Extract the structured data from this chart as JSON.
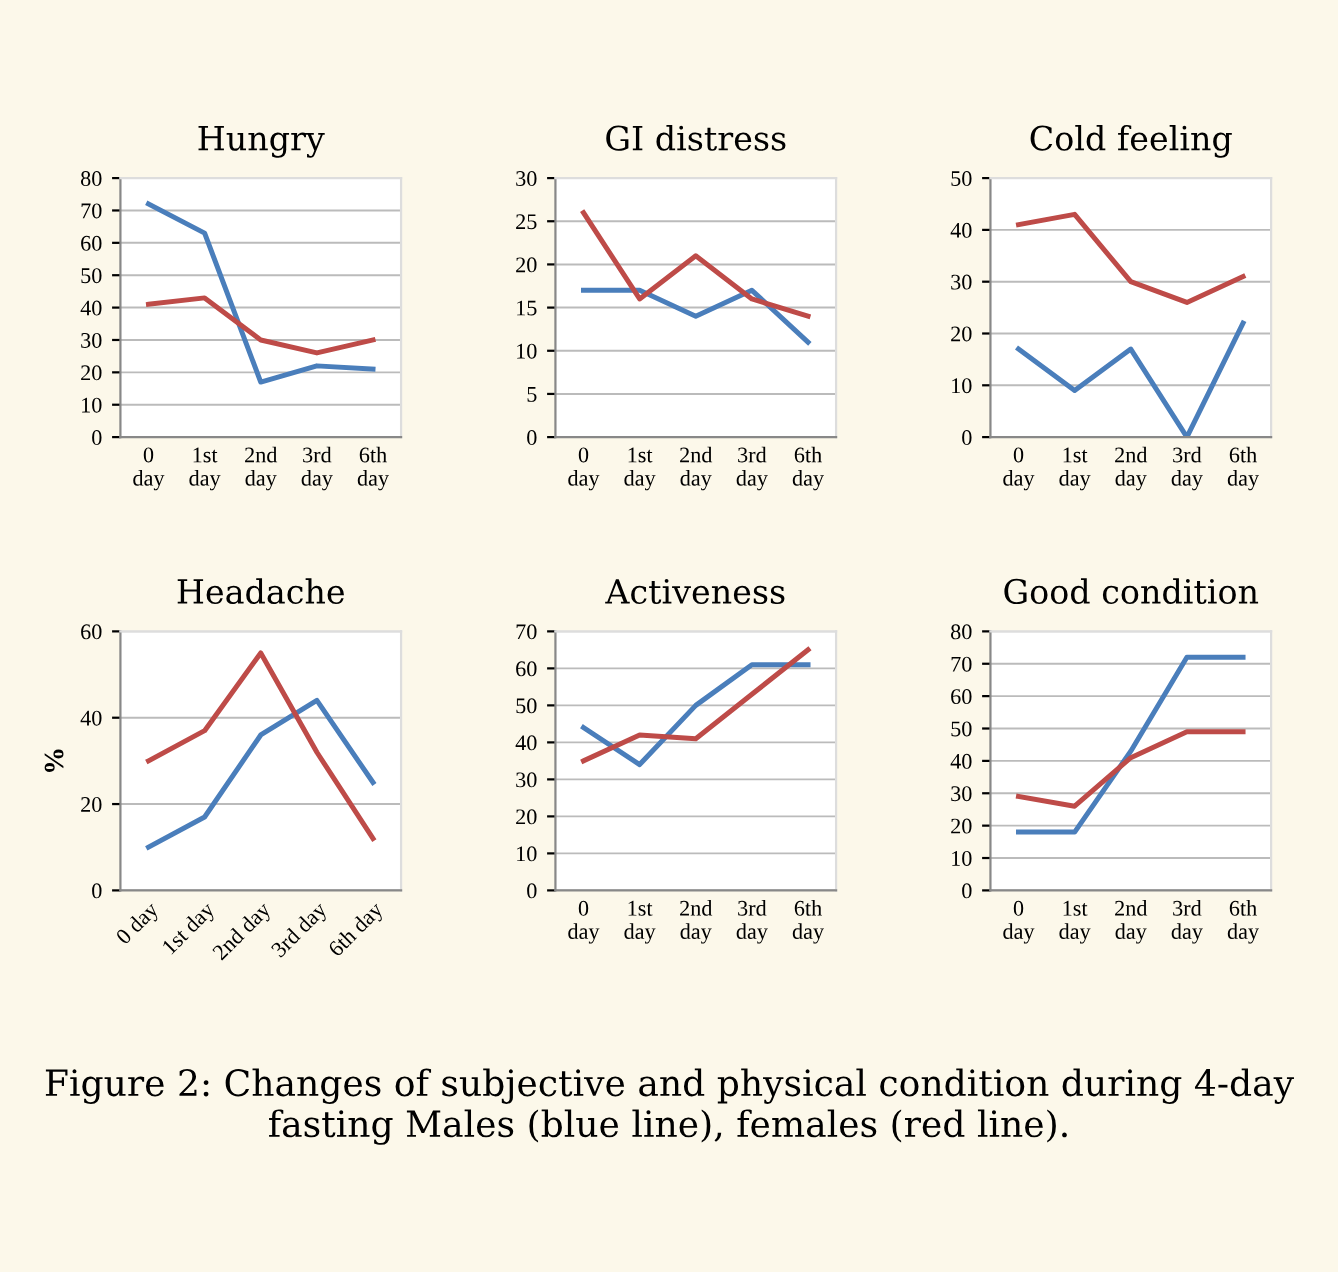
{
  "chart_data": [
    {
      "type": "line",
      "title": "Hungry",
      "categories": [
        "0 day",
        "1st day",
        "2nd day",
        "3rd day",
        "6th day"
      ],
      "series": [
        {
          "color": "#4a7ebb",
          "values": [
            72,
            63,
            17,
            22,
            21
          ]
        },
        {
          "color": "#be4b48",
          "values": [
            41,
            43,
            30,
            26,
            30
          ]
        }
      ],
      "ylim": [
        0,
        80
      ],
      "yticks": [
        0,
        10,
        20,
        30,
        40,
        50,
        60,
        70,
        80
      ],
      "grid": "y"
    },
    {
      "type": "line",
      "title": "GI distress",
      "categories": [
        "0 day",
        "1st day",
        "2nd day",
        "3rd day",
        "6th day"
      ],
      "series": [
        {
          "color": "#4a7ebb",
          "values": [
            17,
            17,
            14,
            17,
            11
          ]
        },
        {
          "color": "#be4b48",
          "values": [
            26,
            16,
            21,
            16,
            14
          ]
        }
      ],
      "ylim": [
        0,
        30
      ],
      "yticks": [
        0,
        5,
        10,
        15,
        20,
        25,
        30
      ],
      "grid": "y"
    },
    {
      "type": "line",
      "title": "Cold feeling",
      "categories": [
        "0 day",
        "1st day",
        "2nd day",
        "3rd day",
        "6th day"
      ],
      "series": [
        {
          "color": "#4a7ebb",
          "values": [
            17,
            9,
            17,
            0,
            22
          ]
        },
        {
          "color": "#be4b48",
          "values": [
            41,
            43,
            30,
            26,
            31
          ]
        }
      ],
      "ylim": [
        0,
        50
      ],
      "yticks": [
        0,
        10,
        20,
        30,
        40,
        50
      ],
      "grid": "y"
    },
    {
      "type": "line",
      "title": "Headache",
      "ylabel": "%",
      "categories": [
        "0 day",
        "1st day",
        "2nd day",
        "3rd day",
        "6th day"
      ],
      "series": [
        {
          "color": "#4a7ebb",
          "values": [
            10,
            17,
            36,
            44,
            25
          ]
        },
        {
          "color": "#be4b48",
          "values": [
            30,
            37,
            55,
            32,
            12
          ]
        }
      ],
      "ylim": [
        0,
        60
      ],
      "yticks": [
        0,
        20,
        40,
        60
      ],
      "grid": "y"
    },
    {
      "type": "line",
      "title": "Activeness",
      "categories": [
        "0 day",
        "1st day",
        "2nd day",
        "3rd day",
        "6th day"
      ],
      "series": [
        {
          "color": "#4a7ebb",
          "values": [
            44,
            34,
            50,
            61,
            61
          ]
        },
        {
          "color": "#be4b48",
          "values": [
            35,
            42,
            41,
            53,
            65
          ]
        }
      ],
      "ylim": [
        0,
        70
      ],
      "yticks": [
        0,
        10,
        20,
        30,
        40,
        50,
        60,
        70
      ],
      "grid": "y"
    },
    {
      "type": "line",
      "title": "Good condition",
      "categories": [
        "0 day",
        "1st day",
        "2nd day",
        "3rd day",
        "6th day"
      ],
      "series": [
        {
          "color": "#4a7ebb",
          "values": [
            18,
            18,
            43,
            72,
            72
          ]
        },
        {
          "color": "#be4b48",
          "values": [
            29,
            26,
            41,
            49,
            49
          ]
        }
      ],
      "ylim": [
        0,
        80
      ],
      "yticks": [
        0,
        10,
        20,
        30,
        40,
        50,
        60,
        70,
        80
      ],
      "grid": "y",
      "annotations": [
        "Figure 2: Changes of subjective and physical condition during 4-day fasting Males (blue line), females (red line)."
      ]
    }
  ]
}
